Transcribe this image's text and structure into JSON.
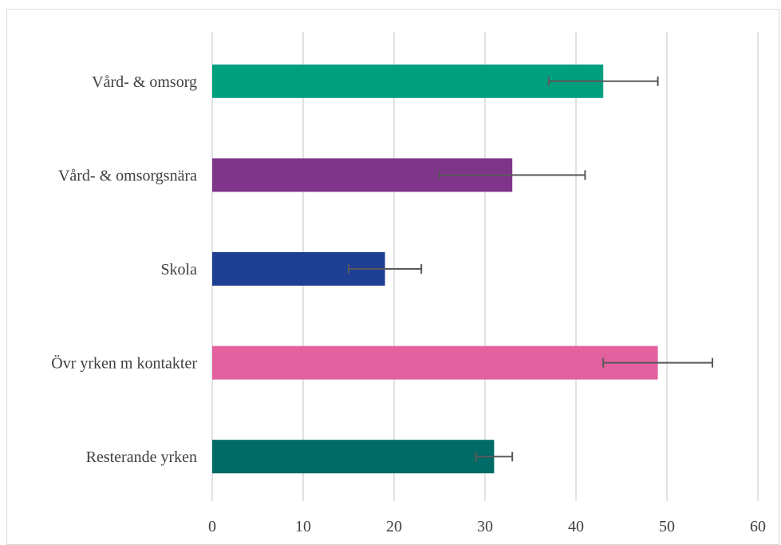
{
  "chart_data": {
    "type": "bar",
    "orientation": "horizontal",
    "categories": [
      "Vård- & omsorg",
      "Vård- & omsorgsnära",
      "Skola",
      "Övr yrken m kontakter",
      "Resterande yrken"
    ],
    "values": [
      43,
      33,
      19,
      49,
      31
    ],
    "error_low": [
      37,
      25,
      15,
      43,
      29
    ],
    "error_high": [
      49,
      41,
      23,
      55,
      33
    ],
    "colors": [
      "#00a07f",
      "#7f358a",
      "#1f3f95",
      "#e3619f",
      "#006b66"
    ],
    "error_bar_color": "#595959",
    "xlim": [
      0,
      60
    ],
    "xticks": [
      0,
      10,
      20,
      30,
      40,
      50,
      60
    ],
    "grid": "vertical",
    "title": "",
    "xlabel": "",
    "ylabel": ""
  }
}
